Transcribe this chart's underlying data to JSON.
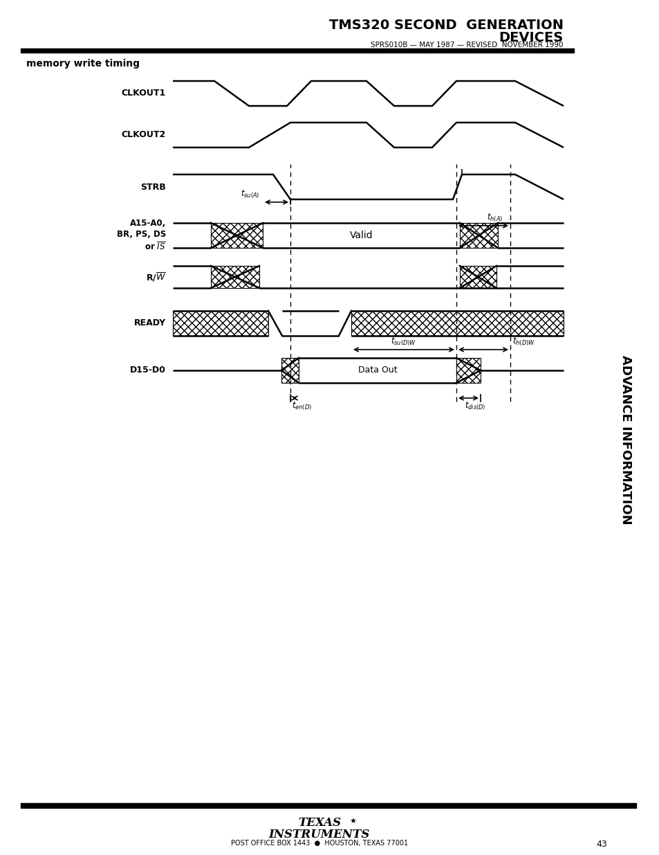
{
  "title_line1": "TMS320 SECOND  GENERATION",
  "title_line2": "DEVICES",
  "subtitle": "SPRS010B — MAY 1987 — REVISED  NOVEMBER 1990",
  "section_title": "memory write timing",
  "page_number": "43",
  "footer_text": "POST OFFICE BOX 1443  ●  HOUSTON, TEXAS 77001",
  "advance_info_text": "ADVANCE INFORMATION",
  "bg_color": "#ffffff",
  "line_color": "#000000"
}
